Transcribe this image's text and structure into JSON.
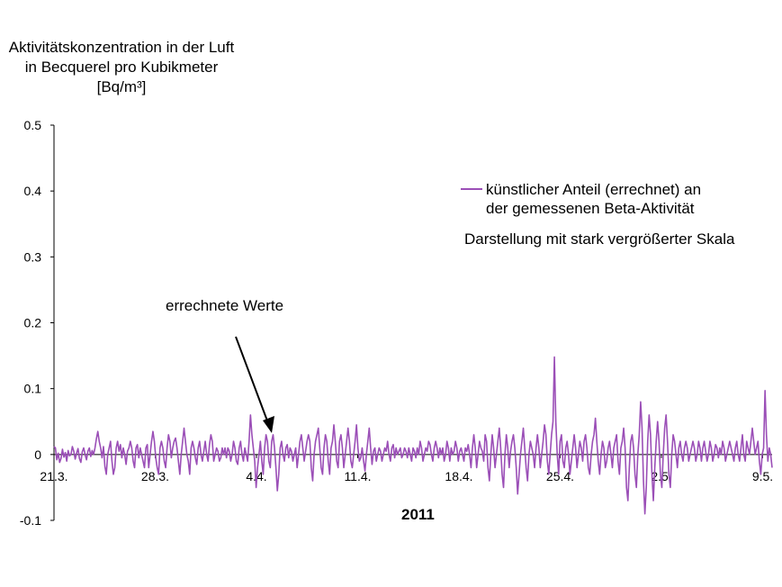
{
  "chart_data": {
    "type": "line",
    "ylabel_lines": [
      "Aktivitätskonzentration in der Luft",
      "in Becquerel pro Kubikmeter",
      "[Bq/m³]"
    ],
    "xlabel": "2011",
    "x_tick_labels": [
      "21.3.",
      "28.3.",
      "4.4.",
      "11.4.",
      "18.4.",
      "25.4.",
      "2.5.",
      "9.5."
    ],
    "y_tick_labels": [
      "0.5",
      "0.4",
      "0.3",
      "0.2",
      "0.1",
      "0",
      "-0.1"
    ],
    "ylim": [
      -0.1,
      0.5
    ],
    "grid": false,
    "legend_position": "top-right",
    "series": [
      {
        "name_lines": [
          "künstlicher Anteil (errechnet) an",
          "der gemessenen Beta-Aktivität"
        ],
        "color": "#9b4fb7",
        "x_start": "21.3.",
        "x_end": "9.5.",
        "values": [
          0.012,
          0.01,
          -0.008,
          0.002,
          -0.012,
          -0.006,
          0.008,
          -0.004,
          0.003,
          -0.01,
          0.006,
          -0.002,
          0.0,
          0.012,
          0.005,
          -0.007,
          0.002,
          0.009,
          -0.006,
          -0.012,
          0.004,
          0.01,
          0.0,
          -0.008,
          0.005,
          0.01,
          -0.003,
          0.006,
          0.0,
          0.01,
          0.024,
          0.035,
          0.02,
          0.01,
          -0.005,
          0.012,
          -0.018,
          -0.03,
          0.0,
          0.01,
          0.02,
          -0.01,
          -0.03,
          -0.02,
          0.01,
          0.02,
          0.005,
          0.015,
          -0.005,
          0.01,
          0.0,
          -0.015,
          0.005,
          0.01,
          0.02,
          0.01,
          -0.01,
          -0.02,
          0.01,
          0.015,
          -0.005,
          0.01,
          0.0,
          -0.01,
          -0.02,
          0.01,
          0.015,
          -0.02,
          0.0,
          0.02,
          0.035,
          0.02,
          -0.005,
          -0.02,
          -0.03,
          0.01,
          0.02,
          0.01,
          -0.01,
          -0.02,
          0.01,
          0.03,
          0.02,
          -0.005,
          0.01,
          0.02,
          0.025,
          0.01,
          -0.01,
          -0.03,
          0.0,
          0.02,
          0.04,
          0.02,
          0.0,
          -0.01,
          -0.03,
          0.01,
          0.02,
          0.01,
          -0.005,
          -0.015,
          0.01,
          0.02,
          0.0,
          -0.01,
          0.005,
          0.02,
          0.0,
          -0.01,
          0.015,
          0.03,
          0.02,
          -0.01,
          0.0,
          0.01,
          0.005,
          -0.01,
          -0.005,
          0.01,
          0.0,
          0.01,
          -0.005,
          0.01,
          0.005,
          -0.01,
          0.0,
          0.02,
          0.01,
          -0.01,
          -0.015,
          0.01,
          0.02,
          0.0,
          -0.01,
          0.01,
          0.0,
          -0.01,
          0.02,
          0.06,
          0.03,
          0.01,
          -0.01,
          -0.05,
          -0.02,
          0.0,
          0.02,
          -0.01,
          -0.03,
          0.01,
          0.03,
          0.02,
          -0.01,
          -0.02,
          0.02,
          0.03,
          0.01,
          -0.02,
          -0.055,
          -0.03,
          0.01,
          0.02,
          0.0,
          -0.01,
          0.01,
          0.015,
          -0.005,
          0.01,
          0.005,
          -0.01,
          0.0,
          0.01,
          -0.02,
          0.0,
          0.02,
          0.03,
          0.01,
          -0.01,
          0.005,
          0.02,
          0.03,
          0.02,
          -0.02,
          -0.04,
          0.0,
          0.02,
          0.03,
          0.04,
          0.01,
          -0.02,
          -0.03,
          0.01,
          0.03,
          0.02,
          -0.01,
          -0.03,
          0.01,
          0.02,
          0.045,
          0.02,
          -0.01,
          -0.02,
          0.02,
          0.03,
          0.01,
          -0.02,
          0.0,
          0.02,
          0.04,
          0.02,
          -0.01,
          -0.02,
          0.0,
          0.02,
          0.045,
          0.01,
          -0.01,
          -0.005,
          0.01,
          -0.01,
          -0.025,
          0.0,
          0.02,
          0.04,
          0.01,
          -0.015,
          0.005,
          0.01,
          -0.01,
          0.0,
          0.01,
          0.005,
          -0.01,
          0.0,
          0.01,
          0.005,
          0.02,
          0.0,
          -0.01,
          0.01,
          0.015,
          -0.005,
          0.01,
          0.0,
          0.005,
          0.01,
          -0.005,
          0.0,
          0.01,
          0.005,
          -0.005,
          0.01,
          0.0,
          -0.01,
          0.01,
          0.005,
          -0.005,
          0.01,
          0.0,
          0.02,
          0.01,
          -0.01,
          0.0,
          0.01,
          0.005,
          0.02,
          0.015,
          0.0,
          -0.01,
          0.01,
          0.02,
          0.01,
          -0.005,
          0.01,
          0.0,
          0.01,
          -0.01,
          0.0,
          0.02,
          0.01,
          -0.01,
          0.01,
          0.0,
          0.005,
          0.02,
          0.01,
          -0.01,
          0.005,
          0.01,
          0.0,
          -0.01,
          0.01,
          0.005,
          0.015,
          0.0,
          -0.02,
          0.01,
          0.03,
          0.01,
          -0.02,
          0.0,
          0.02,
          0.01,
          0.005,
          -0.01,
          0.03,
          0.02,
          -0.02,
          -0.04,
          0.0,
          0.03,
          0.01,
          -0.02,
          0.0,
          0.02,
          0.04,
          0.01,
          -0.03,
          -0.05,
          0.0,
          0.03,
          0.01,
          -0.02,
          0.005,
          0.02,
          0.03,
          0.01,
          -0.02,
          -0.06,
          -0.03,
          0.0,
          0.02,
          0.04,
          0.01,
          -0.02,
          -0.04,
          0.0,
          0.02,
          0.01,
          0.0,
          -0.02,
          0.01,
          0.03,
          0.01,
          -0.02,
          0.0,
          0.02,
          0.045,
          0.03,
          -0.01,
          -0.03,
          0.0,
          0.03,
          0.05,
          0.148,
          0.05,
          0.0,
          -0.03,
          0.02,
          0.03,
          -0.01,
          -0.02,
          0.01,
          0.02,
          0.0,
          -0.03,
          -0.01,
          0.01,
          0.03,
          0.01,
          -0.02,
          0.0,
          0.02,
          0.01,
          -0.01,
          0.02,
          0.03,
          0.01,
          -0.02,
          -0.03,
          0.0,
          0.02,
          0.03,
          0.055,
          0.02,
          -0.01,
          -0.03,
          0.0,
          0.02,
          0.01,
          -0.02,
          -0.01,
          0.01,
          0.02,
          0.0,
          -0.02,
          0.01,
          0.02,
          0.03,
          -0.01,
          -0.03,
          0.01,
          0.02,
          0.04,
          0.01,
          -0.05,
          -0.07,
          -0.02,
          0.02,
          0.03,
          0.01,
          -0.03,
          -0.05,
          0.0,
          0.03,
          0.08,
          0.04,
          -0.04,
          -0.09,
          -0.05,
          0.02,
          0.06,
          0.03,
          -0.03,
          -0.07,
          -0.02,
          0.02,
          0.05,
          0.02,
          -0.03,
          -0.05,
          0.0,
          0.04,
          0.06,
          0.02,
          -0.03,
          -0.05,
          0.0,
          0.03,
          0.02,
          0.0,
          -0.02,
          0.01,
          0.02,
          0.0,
          -0.01,
          0.01,
          0.02,
          0.01,
          -0.01,
          0.0,
          0.01,
          0.02,
          0.01,
          -0.01,
          0.0,
          0.02,
          0.01,
          -0.01,
          0.01,
          0.02,
          0.005,
          -0.01,
          0.0,
          0.02,
          0.01,
          -0.01,
          0.0,
          0.015,
          0.01,
          -0.005,
          0.01,
          0.0,
          0.02,
          0.01,
          -0.01,
          0.0,
          0.01,
          0.02,
          0.01,
          0.0,
          -0.01,
          0.01,
          0.02,
          0.0,
          -0.01,
          0.01,
          0.03,
          0.0,
          -0.01,
          0.02,
          0.01,
          0.0,
          0.02,
          0.04,
          0.02,
          0.0,
          0.01,
          0.02,
          -0.01,
          -0.03,
          0.0,
          0.01,
          0.097,
          0.03,
          -0.01,
          0.01,
          0.0,
          -0.02
        ]
      }
    ]
  },
  "annotations": {
    "arrow_label": "errechnete Werte",
    "scale_note": "Darstellung mit stark vergrößerter Skala"
  }
}
